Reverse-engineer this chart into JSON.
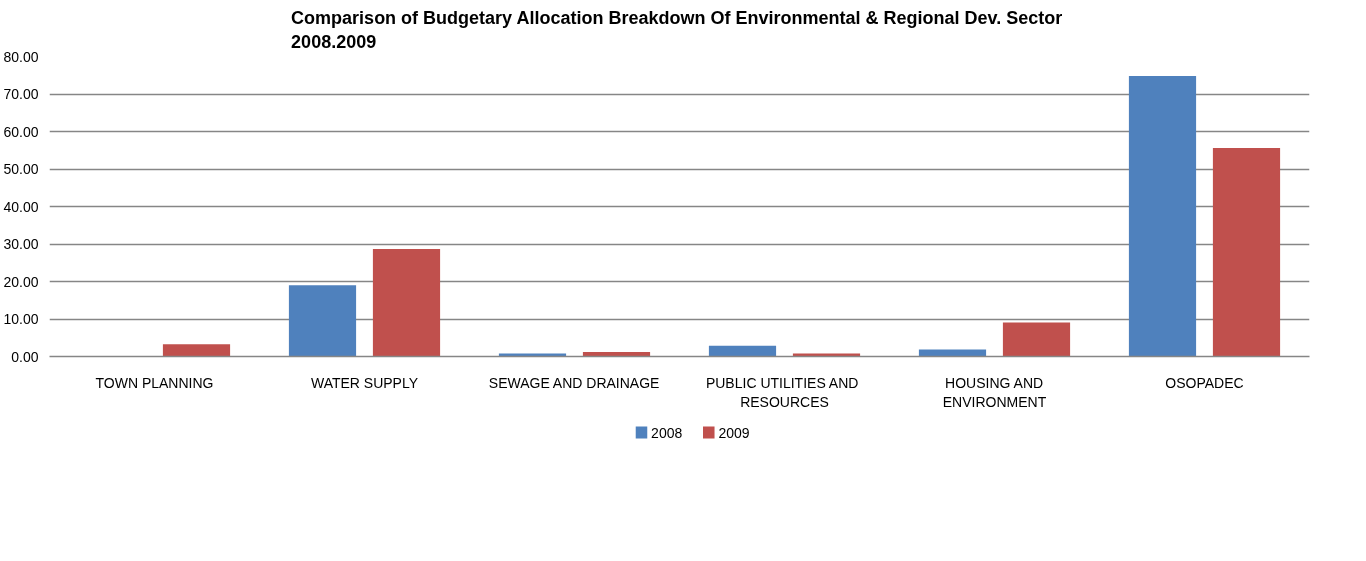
{
  "chart_data": {
    "type": "bar",
    "title": "Comparison of Budgetary Allocation Breakdown Of Environmental  & Regional Dev. Sector\n2008.2009",
    "categories": [
      "TOWN PLANNING",
      "WATER SUPPLY",
      "SEWAGE AND DRAINAGE",
      "PUBLIC UTILITIES  AND\nRESOURCES",
      "HOUSING AND\nENVIRONMENT",
      "OSOPADEC"
    ],
    "series": [
      {
        "name": "2008",
        "color": "#4f81bd",
        "values": [
          0,
          19.0,
          0.8,
          2.9,
          1.9,
          74.8
        ]
      },
      {
        "name": "2009",
        "color": "#c0504d",
        "values": [
          3.3,
          28.7,
          1.2,
          0.8,
          9.1,
          55.6
        ]
      }
    ],
    "ylim": [
      0,
      80
    ],
    "yticks": [
      {
        "value": 0,
        "label": "0.00"
      },
      {
        "value": 10,
        "label": "10.00"
      },
      {
        "value": 20,
        "label": "20.00"
      },
      {
        "value": 30,
        "label": "30.00"
      },
      {
        "value": 40,
        "label": "40.00"
      },
      {
        "value": 50,
        "label": "50.00"
      },
      {
        "value": 60,
        "label": "60.00"
      },
      {
        "value": 70,
        "label": "70.00"
      },
      {
        "value": 80,
        "label": "80.00"
      }
    ],
    "grid": "y",
    "legend": "bottom"
  }
}
